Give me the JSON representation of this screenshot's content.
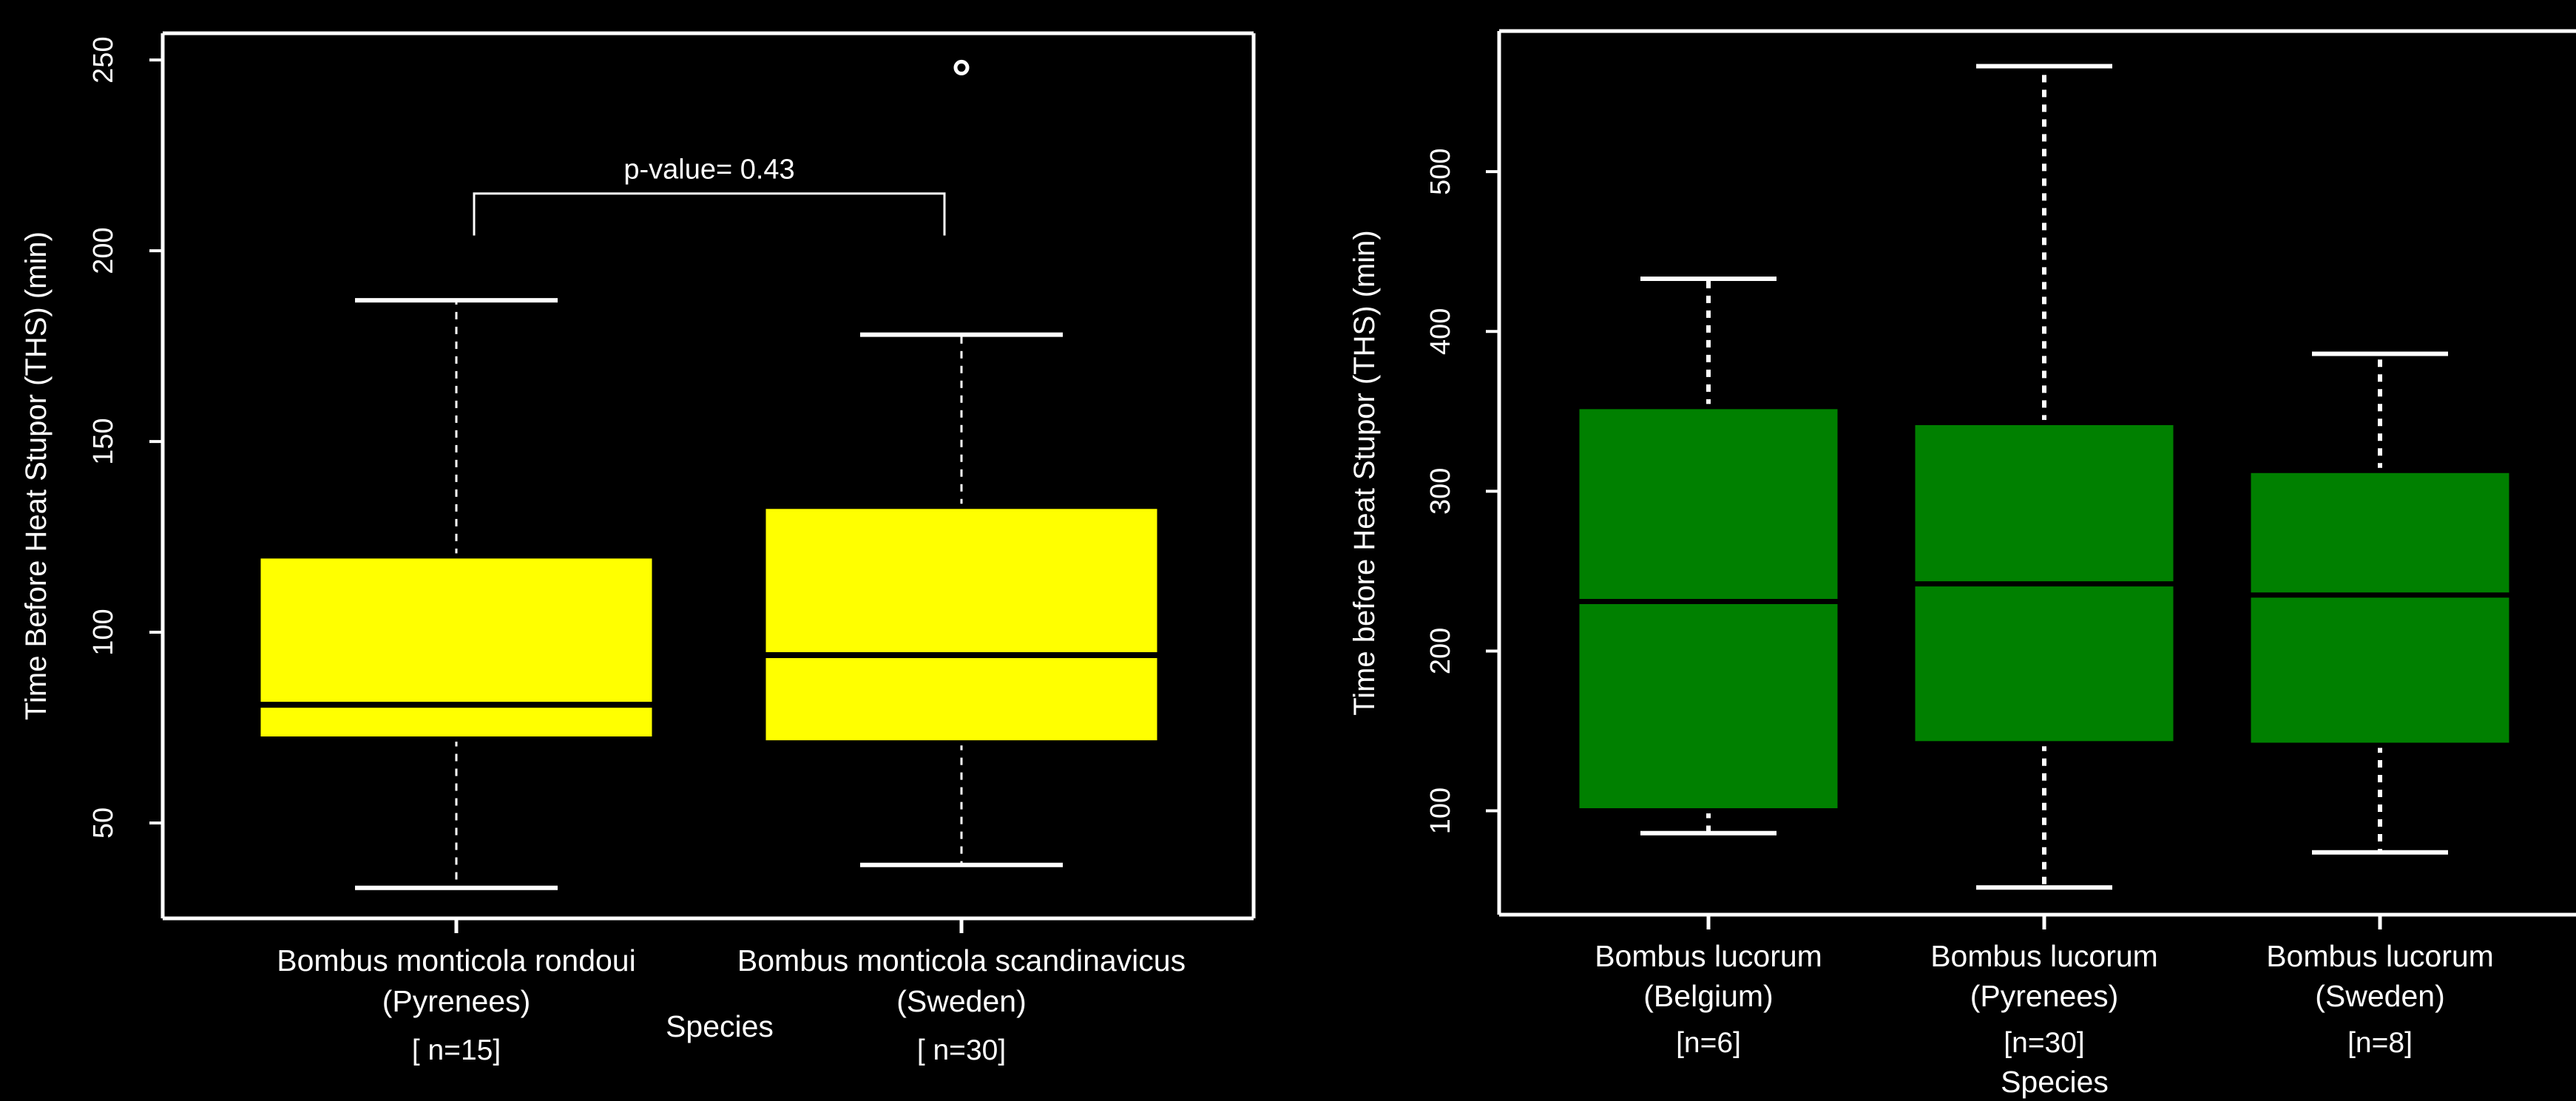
{
  "chart_data": [
    {
      "type": "box",
      "title": "",
      "xlabel": "Species",
      "ylabel": "Time Before Heat Stupor (THS) (min)",
      "ylim": [
        25,
        257
      ],
      "yticks": [
        50,
        100,
        150,
        200,
        250
      ],
      "box_color": "#ffff00",
      "whisker_style": "dashed",
      "categories": [
        {
          "label_lines": [
            "Bombus monticola rondoui",
            "(Pyrenees)"
          ],
          "n_label": "[ n=15]"
        },
        {
          "label_lines": [
            "Bombus monticola scandinavicus",
            "(Sweden)"
          ],
          "n_label": "[ n=30]"
        }
      ],
      "boxes": [
        {
          "min": 33,
          "q1": 72,
          "median": 81,
          "q3": 120,
          "max": 187,
          "outliers": []
        },
        {
          "min": 39,
          "q1": 71,
          "median": 94,
          "q3": 133,
          "max": 178,
          "outliers": [
            248
          ]
        }
      ],
      "annotation": {
        "text": "p-value= 0.43",
        "bracket_y": 215,
        "bracket_drop_to": 204
      }
    },
    {
      "type": "box",
      "title": "",
      "xlabel": "Species",
      "ylabel": "Time before Heat Stupor (THS) (min)",
      "ylim": [
        35,
        588
      ],
      "yticks": [
        100,
        200,
        300,
        400,
        500
      ],
      "box_color": "#008000",
      "whisker_style": "dashed",
      "categories": [
        {
          "label_lines": [
            "Bombus lucorum",
            "(Belgium)"
          ],
          "n_label": "[n=6]"
        },
        {
          "label_lines": [
            "Bombus lucorum",
            "(Pyrenees)"
          ],
          "n_label": "[n=30]"
        },
        {
          "label_lines": [
            "Bombus lucorum",
            "(Sweden)"
          ],
          "n_label": "[n=8]"
        }
      ],
      "boxes": [
        {
          "min": 86,
          "q1": 100,
          "median": 231,
          "q3": 353,
          "max": 433,
          "outliers": []
        },
        {
          "min": 52,
          "q1": 142,
          "median": 242,
          "q3": 343,
          "max": 566,
          "outliers": []
        },
        {
          "min": 74,
          "q1": 141,
          "median": 235,
          "q3": 313,
          "max": 386,
          "outliers": []
        }
      ]
    }
  ]
}
